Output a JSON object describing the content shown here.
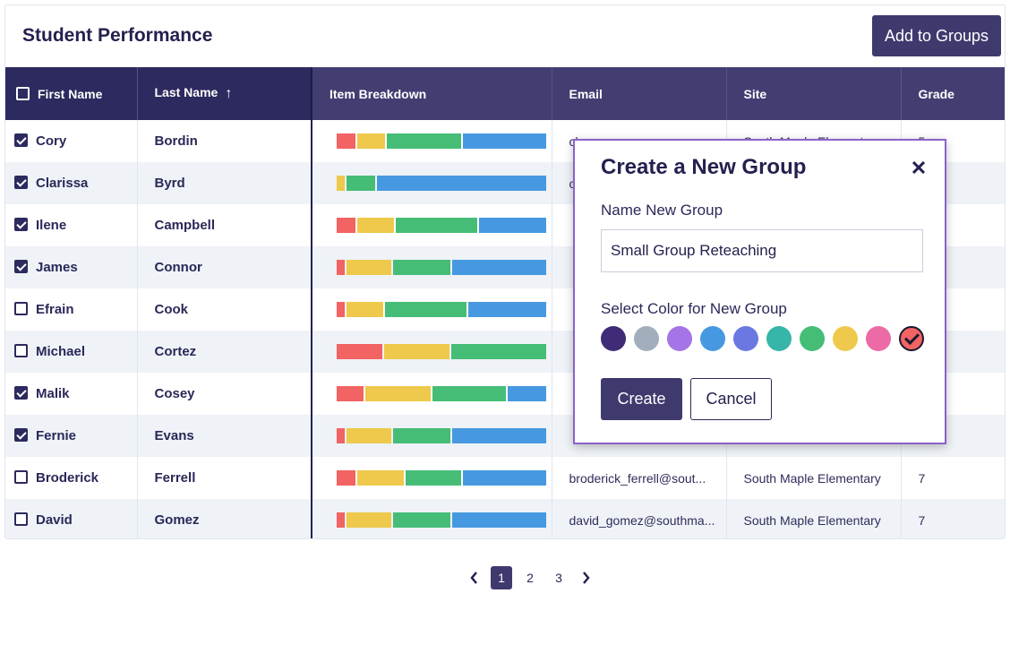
{
  "header": {
    "title": "Student Performance",
    "add_button": "Add to Groups"
  },
  "columns": {
    "first": "First Name",
    "last": "Last Name",
    "breakdown": "Item Breakdown",
    "email": "Email",
    "site": "Site",
    "grade": "Grade"
  },
  "colors": {
    "red": "#f26363",
    "yellow": "#eec94b",
    "green": "#46bd77",
    "blue": "#4699e0",
    "header": "#433e72",
    "accent": "#3f3a6e"
  },
  "rows": [
    {
      "checked": true,
      "first": "Cory",
      "last": "Bordin",
      "email": "cbo...",
      "site": "South Maple Elementary",
      "grade": "5",
      "breakdown": [
        0.09,
        0.14,
        0.36,
        0.41
      ]
    },
    {
      "checked": true,
      "first": "Clarissa",
      "last": "Byrd",
      "email": "c...",
      "site": "",
      "grade": "",
      "breakdown": [
        0.04,
        0.14,
        0.0,
        0.82
      ],
      "breakdown_colors": [
        "yellow",
        "green",
        "green",
        "blue"
      ]
    },
    {
      "checked": true,
      "first": "Ilene",
      "last": "Campbell",
      "email": "",
      "site": "",
      "grade": "",
      "breakdown": [
        0.09,
        0.18,
        0.4,
        0.33
      ]
    },
    {
      "checked": true,
      "first": "James",
      "last": "Connor",
      "email": "",
      "site": "",
      "grade": "",
      "breakdown": [
        0.04,
        0.22,
        0.28,
        0.46
      ]
    },
    {
      "checked": false,
      "first": "Efrain",
      "last": "Cook",
      "email": "",
      "site": "",
      "grade": "",
      "breakdown": [
        0.04,
        0.18,
        0.4,
        0.38
      ]
    },
    {
      "checked": false,
      "first": "Michael",
      "last": "Cortez",
      "email": "",
      "site": "",
      "grade": "",
      "breakdown": [
        0.22,
        0.32,
        0.46,
        0.0
      ]
    },
    {
      "checked": true,
      "first": "Malik",
      "last": "Cosey",
      "email": "",
      "site": "",
      "grade": "",
      "breakdown": [
        0.13,
        0.32,
        0.36,
        0.19
      ]
    },
    {
      "checked": true,
      "first": "Fernie",
      "last": "Evans",
      "email": "",
      "site": "",
      "grade": "",
      "breakdown": [
        0.04,
        0.22,
        0.28,
        0.46
      ]
    },
    {
      "checked": false,
      "first": "Broderick",
      "last": "Ferrell",
      "email": "broderick_ferrell@sout...",
      "site": "South Maple Elementary",
      "grade": "7",
      "breakdown": [
        0.09,
        0.23,
        0.27,
        0.41
      ]
    },
    {
      "checked": false,
      "first": "David",
      "last": "Gomez",
      "email": "david_gomez@southma...",
      "site": "South Maple Elementary",
      "grade": "7",
      "breakdown": [
        0.04,
        0.22,
        0.28,
        0.46
      ]
    }
  ],
  "pagination": {
    "pages": [
      "1",
      "2",
      "3"
    ],
    "current": "1"
  },
  "modal": {
    "title": "Create a New Group",
    "name_label": "Name New Group",
    "name_value": "Small Group Reteaching",
    "color_label": "Select Color for New Group",
    "swatches": [
      "#3f2b78",
      "#a3aebd",
      "#a574e6",
      "#4699e0",
      "#6b78e2",
      "#36b5a9",
      "#46bd77",
      "#eec94b",
      "#ec6aa6",
      "#f26363"
    ],
    "selected_swatch": 9,
    "create_label": "Create",
    "cancel_label": "Cancel"
  }
}
